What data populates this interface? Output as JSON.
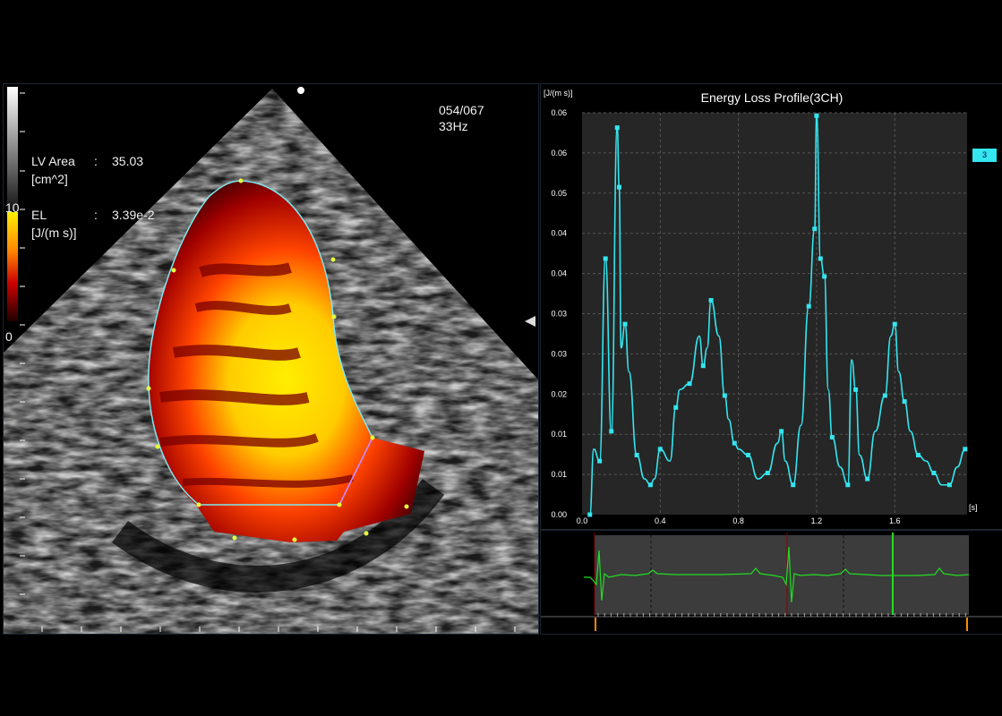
{
  "frame": {
    "counter": "054/067",
    "rate": "33Hz"
  },
  "measurements": {
    "lv_area_label": "LV Area",
    "lv_area_sep": ":",
    "lv_area_value": "35.03",
    "lv_area_unit": "[cm^2]",
    "el_label": "EL",
    "el_sep": ":",
    "el_value": "3.39e-2",
    "el_unit": "[J/(m s)]"
  },
  "colorbar": {
    "max_label": "10",
    "min_label": "0"
  },
  "badge": "3",
  "colors": {
    "curve": "#33e6f0",
    "ecg": "#22dd22",
    "accent_marker": "#ff8800"
  },
  "chart_data": {
    "type": "line",
    "title": "Energy Loss Profile(3CH)",
    "ylabel": "[J/(m s)]",
    "xlabel": "[s]",
    "x_ticks": [
      "0.0",
      "0.4",
      "0.8",
      "1.2",
      "1.6"
    ],
    "y_ticks": [
      "0.00",
      "0.01",
      "0.01",
      "0.02",
      "0.03",
      "0.03",
      "0.04",
      "0.04",
      "0.05",
      "0.06",
      "0.06"
    ],
    "xlim": [
      0,
      1.97
    ],
    "ylim": [
      0,
      0.0675
    ],
    "grid": true,
    "series": [
      {
        "x": [
          0.04,
          0.06,
          0.09,
          0.12,
          0.15,
          0.18,
          0.19,
          0.2,
          0.22,
          0.24,
          0.28,
          0.32,
          0.35,
          0.37,
          0.4,
          0.45,
          0.48,
          0.5,
          0.55,
          0.6,
          0.62,
          0.64,
          0.66,
          0.7,
          0.73,
          0.75,
          0.78,
          0.8,
          0.85,
          0.9,
          0.95,
          1.0,
          1.02,
          1.04,
          1.08,
          1.12,
          1.16,
          1.19,
          1.2,
          1.22,
          1.24,
          1.26,
          1.28,
          1.32,
          1.36,
          1.38,
          1.4,
          1.42,
          1.46,
          1.5,
          1.55,
          1.58,
          1.6,
          1.62,
          1.65,
          1.68,
          1.72,
          1.76,
          1.8,
          1.84,
          1.88,
          1.92,
          1.96
        ],
        "y": [
          0.0,
          0.011,
          0.009,
          0.043,
          0.014,
          0.065,
          0.055,
          0.028,
          0.032,
          0.024,
          0.01,
          0.006,
          0.005,
          0.006,
          0.011,
          0.009,
          0.018,
          0.021,
          0.022,
          0.03,
          0.025,
          0.028,
          0.036,
          0.03,
          0.02,
          0.016,
          0.012,
          0.011,
          0.01,
          0.006,
          0.007,
          0.012,
          0.014,
          0.009,
          0.005,
          0.015,
          0.035,
          0.048,
          0.067,
          0.043,
          0.04,
          0.021,
          0.013,
          0.008,
          0.005,
          0.026,
          0.021,
          0.01,
          0.006,
          0.014,
          0.02,
          0.03,
          0.032,
          0.024,
          0.019,
          0.014,
          0.01,
          0.009,
          0.007,
          0.005,
          0.005,
          0.008,
          0.011
        ]
      }
    ]
  }
}
